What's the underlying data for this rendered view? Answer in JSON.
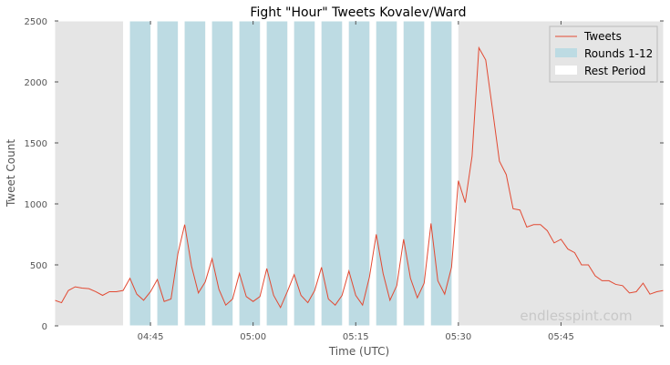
{
  "chart_data": {
    "type": "line",
    "title": "Fight \"Hour\" Tweets Kovalev/Ward",
    "xlabel": "Time (UTC)",
    "ylabel": "Tweet Count",
    "x_start": "04:29",
    "x_end": "05:58",
    "xlim_minutes": [
      0,
      89
    ],
    "ylim": [
      0,
      2500
    ],
    "x_ticks": [
      {
        "label": "04:45",
        "minute": 14
      },
      {
        "label": "05:00",
        "minute": 29
      },
      {
        "label": "05:15",
        "minute": 44
      },
      {
        "label": "05:30",
        "minute": 59
      },
      {
        "label": "05:45",
        "minute": 74
      }
    ],
    "y_ticks": [
      0,
      500,
      1000,
      1500,
      2000,
      2500
    ],
    "grid": false,
    "legend_position": "top-right",
    "legend": [
      {
        "label": "Tweets",
        "kind": "line",
        "color": "#e24a33"
      },
      {
        "label": "Rounds 1-12",
        "kind": "patch",
        "color": "#bddbe3"
      },
      {
        "label": "Rest Period",
        "kind": "patch",
        "color": "#ffffff"
      }
    ],
    "series": [
      {
        "name": "Tweets",
        "color": "#e24a33",
        "x_minutes": [
          0,
          1,
          2,
          3,
          4,
          5,
          6,
          7,
          8,
          9,
          10,
          11,
          12,
          13,
          14,
          15,
          16,
          17,
          18,
          19,
          20,
          21,
          22,
          23,
          24,
          25,
          26,
          27,
          28,
          29,
          30,
          31,
          32,
          33,
          34,
          35,
          36,
          37,
          38,
          39,
          40,
          41,
          42,
          43,
          44,
          45,
          46,
          47,
          48,
          49,
          50,
          51,
          52,
          53,
          54,
          55,
          56,
          57,
          58,
          59,
          60,
          61,
          62,
          63,
          64,
          65,
          66,
          67,
          68,
          69,
          70,
          71,
          72,
          73,
          74,
          75,
          76,
          77,
          78,
          79,
          80,
          81,
          82,
          83,
          84,
          85,
          86,
          87,
          88,
          89
        ],
        "values": [
          210,
          190,
          290,
          320,
          310,
          305,
          280,
          250,
          280,
          280,
          290,
          390,
          260,
          210,
          280,
          380,
          200,
          220,
          590,
          830,
          490,
          270,
          360,
          550,
          300,
          170,
          220,
          430,
          240,
          200,
          240,
          470,
          250,
          150,
          280,
          420,
          250,
          190,
          290,
          480,
          220,
          170,
          250,
          450,
          250,
          170,
          400,
          750,
          430,
          210,
          330,
          710,
          390,
          230,
          350,
          840,
          370,
          260,
          480,
          1190,
          1010,
          1390,
          2280,
          2180,
          1770,
          1350,
          1240,
          960,
          950,
          810,
          830,
          830,
          780,
          680,
          710,
          630,
          600,
          500,
          500,
          410,
          370,
          370,
          340,
          330,
          270,
          280,
          350,
          260,
          280,
          290
        ]
      }
    ],
    "rounds": [
      {
        "start": 11,
        "end": 14
      },
      {
        "start": 15,
        "end": 18
      },
      {
        "start": 19,
        "end": 22
      },
      {
        "start": 23,
        "end": 26
      },
      {
        "start": 27,
        "end": 30
      },
      {
        "start": 31,
        "end": 34
      },
      {
        "start": 35,
        "end": 38
      },
      {
        "start": 39,
        "end": 42
      },
      {
        "start": 43,
        "end": 46
      },
      {
        "start": 47,
        "end": 50
      },
      {
        "start": 51,
        "end": 54
      },
      {
        "start": 55,
        "end": 58
      }
    ],
    "colors": {
      "background": "#e5e5e5",
      "rounds": "#bddbe3",
      "rest": "#ffffff",
      "line": "#e24a33"
    }
  },
  "watermark": "endlesspint.com"
}
